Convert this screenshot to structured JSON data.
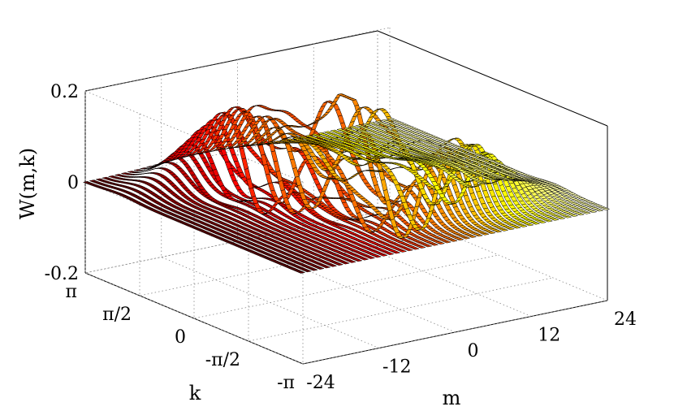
{
  "chart_data": {
    "type": "ribbon3d",
    "zlabel": "W(m,k)",
    "xlabel": "m",
    "ylabel": "k",
    "m_ticks": [
      "-24",
      "-12",
      "0",
      "12",
      "24"
    ],
    "k_ticks": [
      "π",
      "π/2",
      "0",
      "-π/2",
      "-π"
    ],
    "z_ticks": [
      "0.2",
      "0",
      "-0.2"
    ],
    "xlim": [
      -24,
      24
    ],
    "ylim": [
      -3.1416,
      3.1416
    ],
    "zlim": [
      -0.2,
      0.2
    ],
    "grid": true,
    "colormap": "hot"
  }
}
